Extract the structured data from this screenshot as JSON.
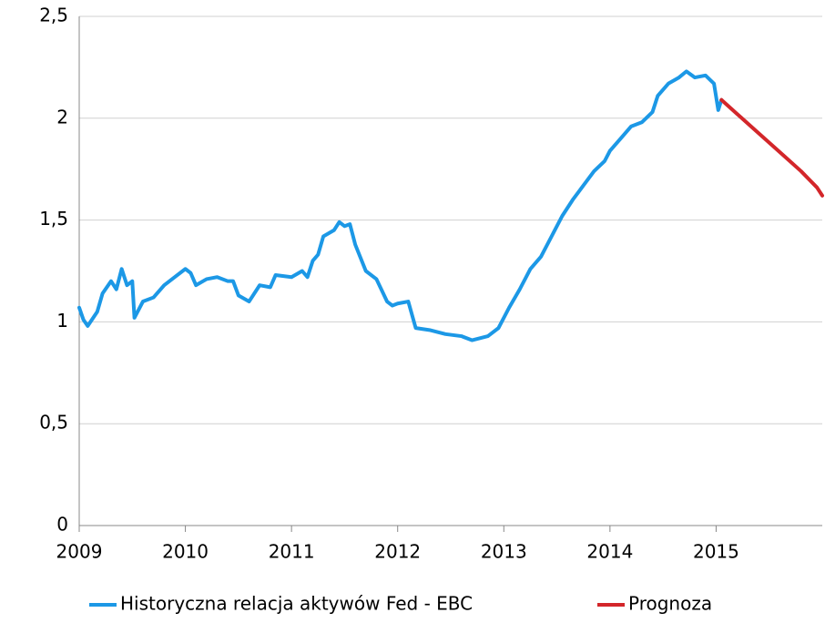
{
  "chart_data": {
    "type": "line",
    "series": [
      {
        "name": "Historyczna relacja aktywów Fed - EBC",
        "color": "#1c98e6",
        "x": [
          2009.0,
          2009.04,
          2009.08,
          2009.17,
          2009.22,
          2009.3,
          2009.35,
          2009.4,
          2009.45,
          2009.5,
          2009.52,
          2009.6,
          2009.7,
          2009.8,
          2009.9,
          2010.0,
          2010.05,
          2010.1,
          2010.2,
          2010.3,
          2010.4,
          2010.45,
          2010.5,
          2010.6,
          2010.7,
          2010.8,
          2010.85,
          2011.0,
          2011.1,
          2011.15,
          2011.2,
          2011.25,
          2011.3,
          2011.4,
          2011.45,
          2011.5,
          2011.55,
          2011.6,
          2011.7,
          2011.8,
          2011.9,
          2011.95,
          2012.0,
          2012.1,
          2012.17,
          2012.3,
          2012.45,
          2012.6,
          2012.7,
          2012.85,
          2012.95,
          2013.05,
          2013.15,
          2013.25,
          2013.35,
          2013.45,
          2013.55,
          2013.65,
          2013.75,
          2013.85,
          2013.95,
          2014.0,
          2014.1,
          2014.2,
          2014.3,
          2014.4,
          2014.45,
          2014.55,
          2014.65,
          2014.72,
          2014.8,
          2014.9,
          2014.98,
          2015.02,
          2015.05
        ],
        "values": [
          1.07,
          1.01,
          0.98,
          1.05,
          1.14,
          1.2,
          1.16,
          1.26,
          1.18,
          1.2,
          1.02,
          1.1,
          1.12,
          1.18,
          1.22,
          1.26,
          1.24,
          1.18,
          1.21,
          1.22,
          1.2,
          1.2,
          1.13,
          1.1,
          1.18,
          1.17,
          1.23,
          1.22,
          1.25,
          1.22,
          1.3,
          1.33,
          1.42,
          1.45,
          1.49,
          1.47,
          1.48,
          1.38,
          1.25,
          1.21,
          1.1,
          1.08,
          1.09,
          1.1,
          0.97,
          0.96,
          0.94,
          0.93,
          0.91,
          0.93,
          0.97,
          1.07,
          1.16,
          1.26,
          1.32,
          1.42,
          1.52,
          1.6,
          1.67,
          1.74,
          1.79,
          1.84,
          1.9,
          1.96,
          1.98,
          2.03,
          2.11,
          2.17,
          2.2,
          2.23,
          2.2,
          2.21,
          2.17,
          2.04,
          2.09
        ]
      },
      {
        "name": "Prognoza",
        "color": "#d3262a",
        "x": [
          2015.05,
          2015.2,
          2015.35,
          2015.5,
          2015.65,
          2015.8,
          2015.95,
          2016.0
        ],
        "values": [
          2.09,
          2.02,
          1.95,
          1.88,
          1.81,
          1.74,
          1.66,
          1.62
        ]
      }
    ],
    "xlim": [
      2009,
      2016
    ],
    "xticks": [
      2009,
      2010,
      2011,
      2012,
      2013,
      2014,
      2015
    ],
    "ylim": [
      0,
      2.5
    ],
    "yticks": [
      0,
      {
        "value": 0.5,
        "label": "0,5"
      },
      1,
      {
        "value": 1.5,
        "label": "1,5"
      },
      2,
      {
        "value": 2.5,
        "label": "2,5"
      }
    ],
    "grid": true,
    "legend": "bottom"
  }
}
